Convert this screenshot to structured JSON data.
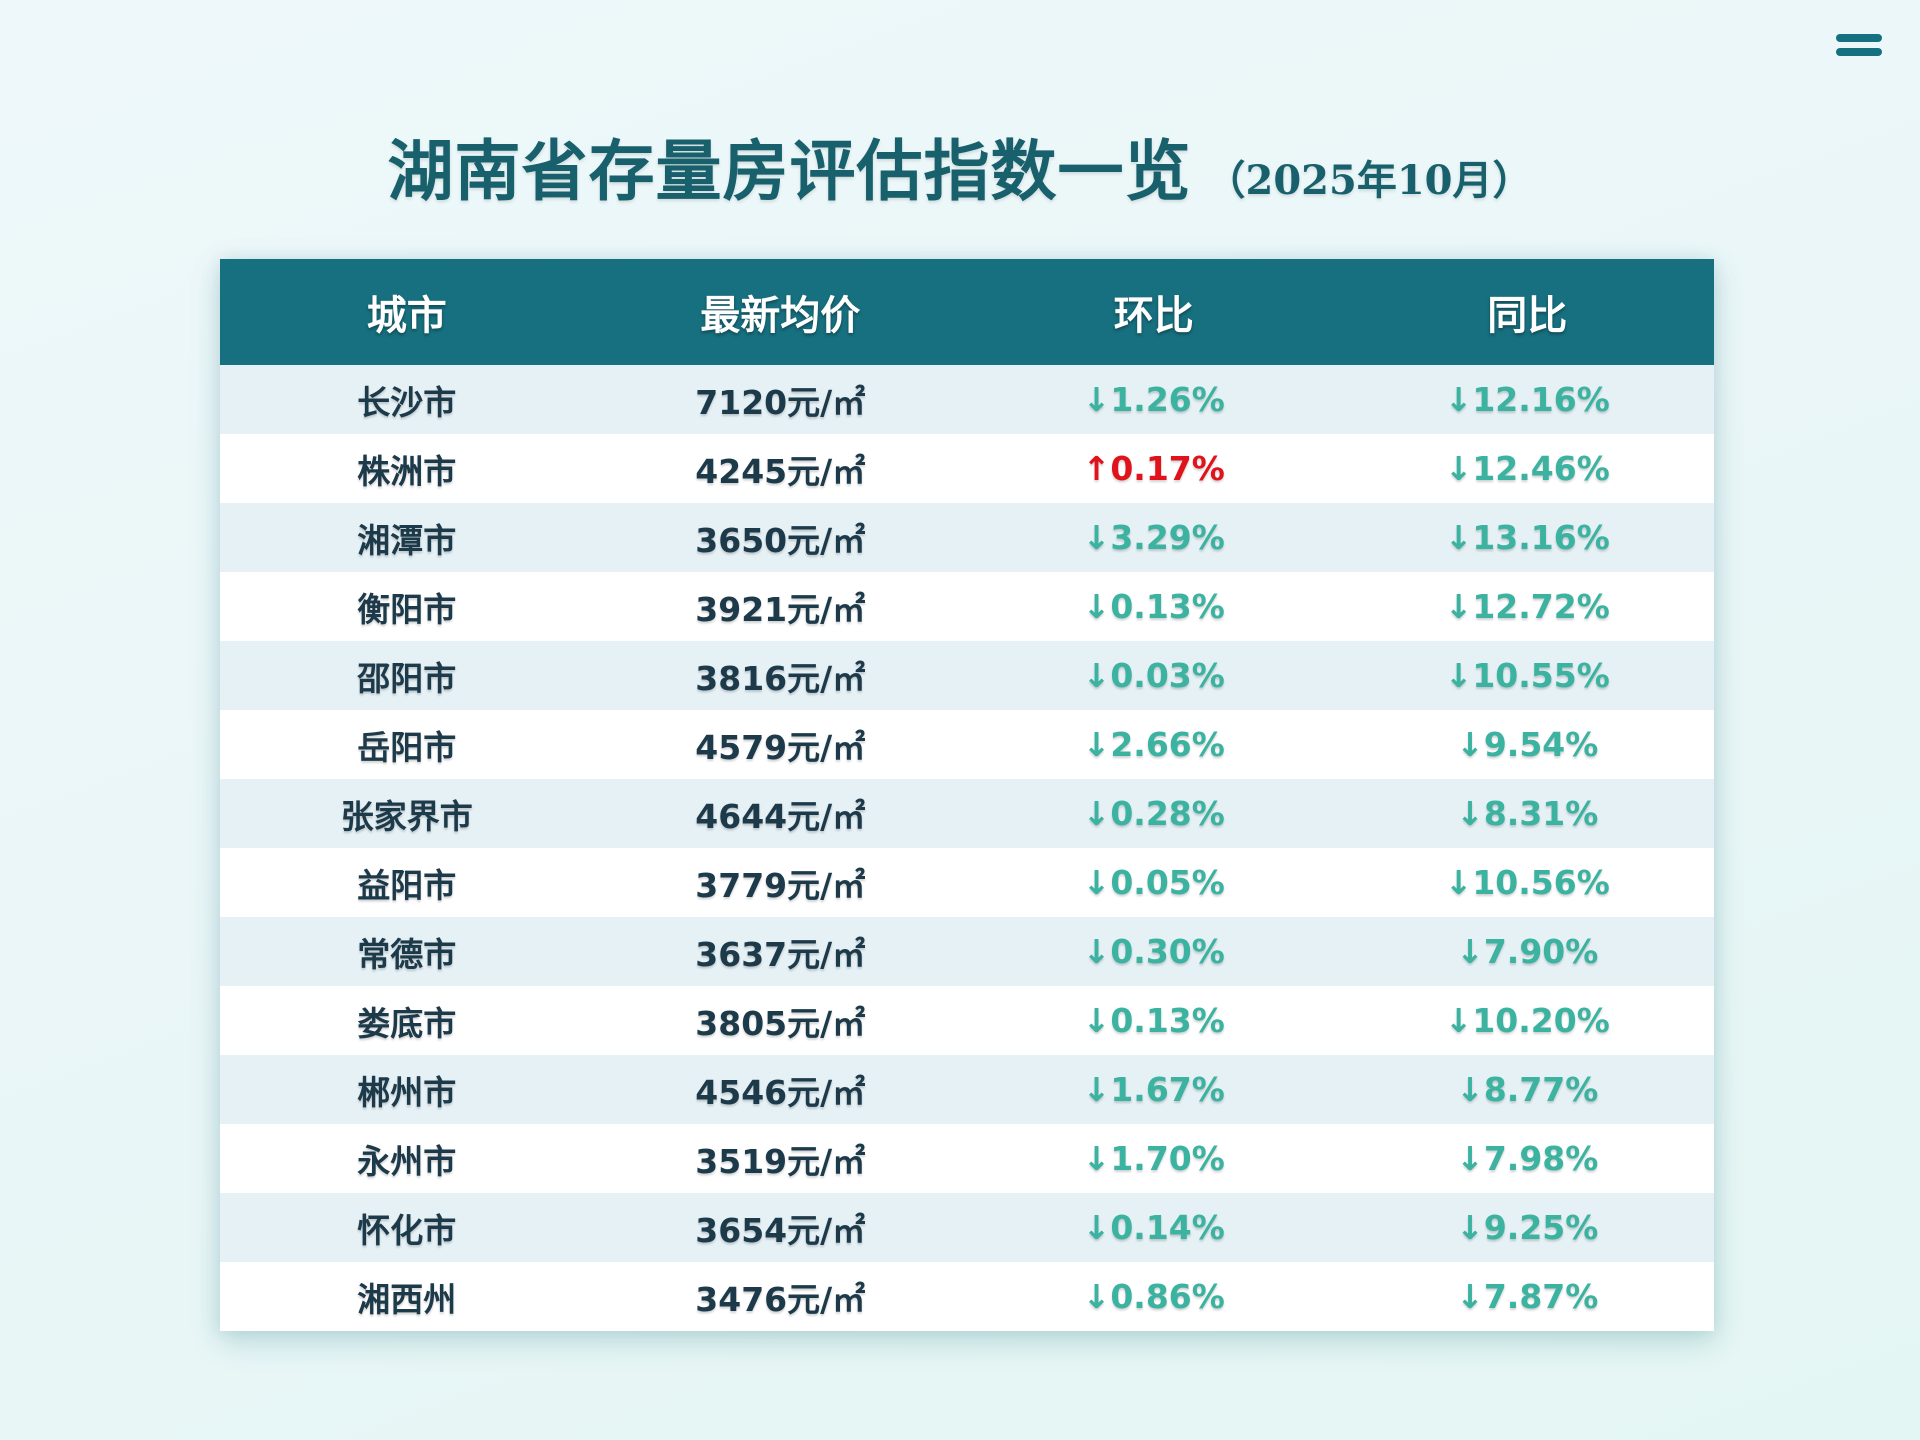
{
  "title": "湖南省存量房评估指数一览",
  "subtitle": "（2025年10月）",
  "chart_data": {
    "type": "table",
    "columns": [
      "城市",
      "最新均价",
      "环比",
      "同比"
    ],
    "unit": "元/㎡",
    "rows": [
      {
        "city": "长沙市",
        "price": 7120,
        "price_text": "7120元/㎡",
        "mom": -1.26,
        "mom_text": "↓1.26%",
        "yoy": -12.16,
        "yoy_text": "↓12.16%"
      },
      {
        "city": "株洲市",
        "price": 4245,
        "price_text": "4245元/㎡",
        "mom": 0.17,
        "mom_text": "↑0.17%",
        "yoy": -12.46,
        "yoy_text": "↓12.46%"
      },
      {
        "city": "湘潭市",
        "price": 3650,
        "price_text": "3650元/㎡",
        "mom": -3.29,
        "mom_text": "↓3.29%",
        "yoy": -13.16,
        "yoy_text": "↓13.16%"
      },
      {
        "city": "衡阳市",
        "price": 3921,
        "price_text": "3921元/㎡",
        "mom": -0.13,
        "mom_text": "↓0.13%",
        "yoy": -12.72,
        "yoy_text": "↓12.72%"
      },
      {
        "city": "邵阳市",
        "price": 3816,
        "price_text": "3816元/㎡",
        "mom": -0.03,
        "mom_text": "↓0.03%",
        "yoy": -10.55,
        "yoy_text": "↓10.55%"
      },
      {
        "city": "岳阳市",
        "price": 4579,
        "price_text": "4579元/㎡",
        "mom": -2.66,
        "mom_text": "↓2.66%",
        "yoy": -9.54,
        "yoy_text": "↓9.54%"
      },
      {
        "city": "张家界市",
        "price": 4644,
        "price_text": "4644元/㎡",
        "mom": -0.28,
        "mom_text": "↓0.28%",
        "yoy": -8.31,
        "yoy_text": "↓8.31%"
      },
      {
        "city": "益阳市",
        "price": 3779,
        "price_text": "3779元/㎡",
        "mom": -0.05,
        "mom_text": "↓0.05%",
        "yoy": -10.56,
        "yoy_text": "↓10.56%"
      },
      {
        "city": "常德市",
        "price": 3637,
        "price_text": "3637元/㎡",
        "mom": -0.3,
        "mom_text": "↓0.30%",
        "yoy": -7.9,
        "yoy_text": "↓7.90%"
      },
      {
        "city": "娄底市",
        "price": 3805,
        "price_text": "3805元/㎡",
        "mom": -0.13,
        "mom_text": "↓0.13%",
        "yoy": -10.2,
        "yoy_text": "↓10.20%"
      },
      {
        "city": "郴州市",
        "price": 4546,
        "price_text": "4546元/㎡",
        "mom": -1.67,
        "mom_text": "↓1.67%",
        "yoy": -8.77,
        "yoy_text": "↓8.77%"
      },
      {
        "city": "永州市",
        "price": 3519,
        "price_text": "3519元/㎡",
        "mom": -1.7,
        "mom_text": "↓1.70%",
        "yoy": -7.98,
        "yoy_text": "↓7.98%"
      },
      {
        "city": "怀化市",
        "price": 3654,
        "price_text": "3654元/㎡",
        "mom": -0.14,
        "mom_text": "↓0.14%",
        "yoy": -9.25,
        "yoy_text": "↓9.25%"
      },
      {
        "city": "湘西州",
        "price": 3476,
        "price_text": "3476元/㎡",
        "mom": -0.86,
        "mom_text": "↓0.86%",
        "yoy": -7.87,
        "yoy_text": "↓7.87%"
      }
    ]
  },
  "colors": {
    "header_bg": "#17707f",
    "title": "#17606c",
    "down": "#3bb3a0",
    "up": "#e0121b",
    "row_alt": "#e6f1f6"
  },
  "icons": {
    "menu": "hamburger-menu-icon"
  }
}
